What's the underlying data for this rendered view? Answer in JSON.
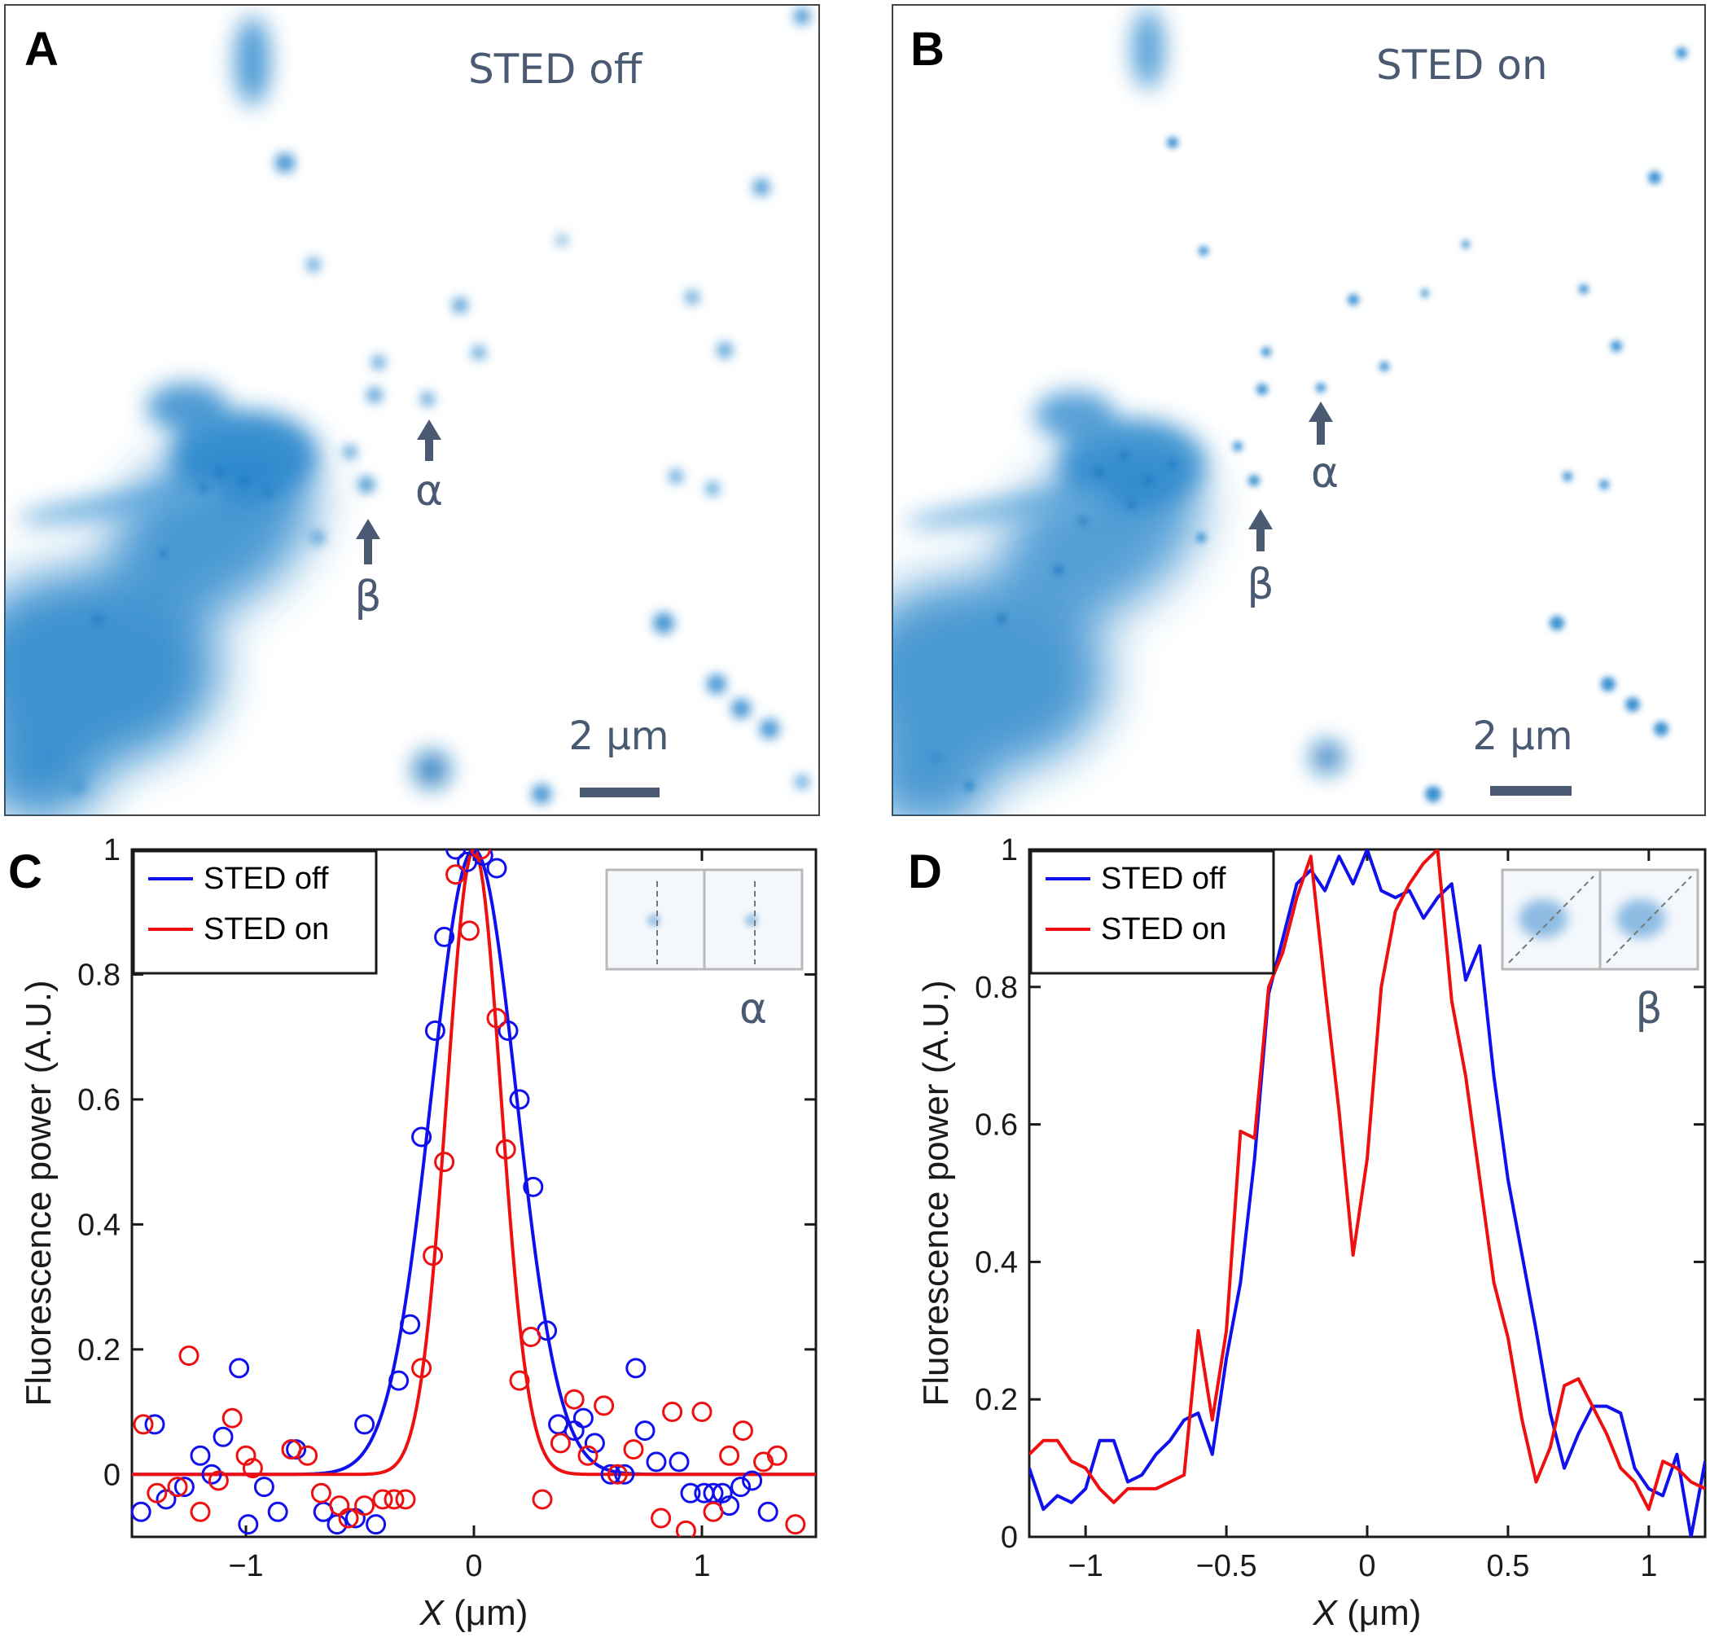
{
  "panels": {
    "A": {
      "letter": "A",
      "title": "STED off",
      "arrow_alpha": "α",
      "arrow_beta": "β",
      "scalebar": "2 μm"
    },
    "B": {
      "letter": "B",
      "title": "STED on",
      "arrow_alpha": "α",
      "arrow_beta": "β",
      "scalebar": "2 μm"
    },
    "C": {
      "letter": "C",
      "inset_label": "α"
    },
    "D": {
      "letter": "D",
      "inset_label": "β"
    }
  },
  "colors": {
    "sted_off": "#1010ee",
    "sted_on": "#ee1010",
    "image_blue": "#1f7fc8",
    "annotation": "#4a5a72"
  },
  "chart_data": [
    {
      "type": "scatter",
      "panel": "C",
      "xlabel_var": "X",
      "xlabel_unit": " (μm)",
      "ylabel": "Fluorescence power (A.U.)",
      "xlim": [
        -1.5,
        1.5
      ],
      "ylim": [
        -0.1,
        1.0
      ],
      "xticks": [
        -1,
        0,
        1
      ],
      "xtick_labels": [
        "−1",
        "0",
        "1"
      ],
      "yticks": [
        0,
        0.2,
        0.4,
        0.6,
        0.8,
        1
      ],
      "ytick_labels": [
        "0",
        "0.2",
        "0.4",
        "0.6",
        "0.8",
        "1"
      ],
      "legend": {
        "position": "top-left",
        "entries": [
          "STED off",
          "STED on"
        ]
      },
      "series": [
        {
          "name": "STED off",
          "color": "#1010ee",
          "points": [
            [
              -1.46,
              -0.06
            ],
            [
              -1.4,
              0.08
            ],
            [
              -1.35,
              -0.04
            ],
            [
              -1.27,
              -0.02
            ],
            [
              -1.2,
              0.03
            ],
            [
              -1.15,
              0.0
            ],
            [
              -1.1,
              0.06
            ],
            [
              -1.03,
              0.17
            ],
            [
              -0.99,
              -0.08
            ],
            [
              -0.92,
              -0.02
            ],
            [
              -0.86,
              -0.06
            ],
            [
              -0.8,
              0.04
            ],
            [
              -0.78,
              0.04
            ],
            [
              -0.66,
              -0.06
            ],
            [
              -0.6,
              -0.08
            ],
            [
              -0.52,
              -0.07
            ],
            [
              -0.48,
              0.08
            ],
            [
              -0.43,
              -0.08
            ],
            [
              -0.33,
              0.15
            ],
            [
              -0.28,
              0.24
            ],
            [
              -0.23,
              0.54
            ],
            [
              -0.17,
              0.71
            ],
            [
              -0.13,
              0.86
            ],
            [
              -0.08,
              1.0
            ],
            [
              -0.03,
              0.98
            ],
            [
              0.04,
              0.99
            ],
            [
              0.1,
              0.97
            ],
            [
              0.15,
              0.71
            ],
            [
              0.2,
              0.6
            ],
            [
              0.26,
              0.46
            ],
            [
              0.32,
              0.23
            ],
            [
              0.37,
              0.08
            ],
            [
              0.44,
              0.07
            ],
            [
              0.48,
              0.09
            ],
            [
              0.53,
              0.05
            ],
            [
              0.6,
              0.0
            ],
            [
              0.66,
              0.0
            ],
            [
              0.71,
              0.17
            ],
            [
              0.75,
              0.07
            ],
            [
              0.8,
              0.02
            ],
            [
              0.9,
              0.02
            ],
            [
              0.95,
              -0.03
            ],
            [
              1.01,
              -0.03
            ],
            [
              1.05,
              -0.03
            ],
            [
              1.09,
              -0.03
            ],
            [
              1.12,
              -0.05
            ],
            [
              1.17,
              -0.02
            ],
            [
              1.22,
              -0.01
            ],
            [
              1.29,
              -0.06
            ]
          ]
        },
        {
          "name": "STED on",
          "color": "#ee1010",
          "points": [
            [
              -1.45,
              0.08
            ],
            [
              -1.39,
              -0.03
            ],
            [
              -1.3,
              -0.02
            ],
            [
              -1.25,
              0.19
            ],
            [
              -1.2,
              -0.06
            ],
            [
              -1.12,
              -0.01
            ],
            [
              -1.06,
              0.09
            ],
            [
              -1.0,
              0.03
            ],
            [
              -0.97,
              0.01
            ],
            [
              -0.8,
              0.04
            ],
            [
              -0.73,
              0.03
            ],
            [
              -0.67,
              -0.03
            ],
            [
              -0.59,
              -0.05
            ],
            [
              -0.55,
              -0.07
            ],
            [
              -0.48,
              -0.05
            ],
            [
              -0.4,
              -0.04
            ],
            [
              -0.35,
              -0.04
            ],
            [
              -0.3,
              -0.04
            ],
            [
              -0.23,
              0.17
            ],
            [
              -0.18,
              0.35
            ],
            [
              -0.13,
              0.5
            ],
            [
              -0.08,
              0.96
            ],
            [
              -0.02,
              0.87
            ],
            [
              0.03,
              1.0
            ],
            [
              0.1,
              0.73
            ],
            [
              0.14,
              0.52
            ],
            [
              0.2,
              0.15
            ],
            [
              0.25,
              0.22
            ],
            [
              0.3,
              -0.04
            ],
            [
              0.38,
              0.05
            ],
            [
              0.44,
              0.12
            ],
            [
              0.5,
              0.03
            ],
            [
              0.57,
              0.11
            ],
            [
              0.63,
              0.0
            ],
            [
              0.7,
              0.04
            ],
            [
              0.82,
              -0.07
            ],
            [
              0.87,
              0.1
            ],
            [
              0.93,
              -0.09
            ],
            [
              1.0,
              0.1
            ],
            [
              1.05,
              -0.06
            ],
            [
              1.12,
              0.03
            ],
            [
              1.18,
              0.07
            ],
            [
              1.27,
              0.02
            ],
            [
              1.33,
              0.03
            ],
            [
              1.41,
              -0.08
            ]
          ]
        }
      ],
      "fits": [
        {
          "name": "STED off",
          "color": "#1010ee",
          "amplitude": 1.0,
          "center": 0.0,
          "fwhm": 0.44
        },
        {
          "name": "STED on",
          "color": "#ee1010",
          "amplitude": 1.0,
          "center": 0.0,
          "fwhm": 0.28
        }
      ]
    },
    {
      "type": "line",
      "panel": "D",
      "xlabel_var": "X",
      "xlabel_unit": " (μm)",
      "ylabel": "Fluorescence power (A.U.)",
      "xlim": [
        -1.2,
        1.2
      ],
      "ylim": [
        0,
        1.0
      ],
      "xticks": [
        -1,
        -0.5,
        0,
        0.5,
        1
      ],
      "xtick_labels": [
        "−1",
        "−0.5",
        "0",
        "0.5",
        "1"
      ],
      "yticks": [
        0,
        0.2,
        0.4,
        0.6,
        0.8,
        1
      ],
      "ytick_labels": [
        "0",
        "0.2",
        "0.4",
        "0.6",
        "0.8",
        "1"
      ],
      "legend": {
        "position": "top-left",
        "entries": [
          "STED off",
          "STED on"
        ]
      },
      "series": [
        {
          "name": "STED off",
          "color": "#1010ee",
          "points": [
            [
              -1.2,
              0.1
            ],
            [
              -1.15,
              0.04
            ],
            [
              -1.1,
              0.06
            ],
            [
              -1.05,
              0.05
            ],
            [
              -1.0,
              0.07
            ],
            [
              -0.95,
              0.14
            ],
            [
              -0.9,
              0.14
            ],
            [
              -0.85,
              0.08
            ],
            [
              -0.8,
              0.09
            ],
            [
              -0.75,
              0.12
            ],
            [
              -0.7,
              0.14
            ],
            [
              -0.65,
              0.17
            ],
            [
              -0.6,
              0.18
            ],
            [
              -0.55,
              0.12
            ],
            [
              -0.5,
              0.26
            ],
            [
              -0.45,
              0.37
            ],
            [
              -0.4,
              0.55
            ],
            [
              -0.35,
              0.79
            ],
            [
              -0.3,
              0.87
            ],
            [
              -0.25,
              0.95
            ],
            [
              -0.2,
              0.97
            ],
            [
              -0.15,
              0.94
            ],
            [
              -0.1,
              0.99
            ],
            [
              -0.05,
              0.95
            ],
            [
              0.0,
              1.0
            ],
            [
              0.05,
              0.94
            ],
            [
              0.1,
              0.93
            ],
            [
              0.15,
              0.94
            ],
            [
              0.2,
              0.9
            ],
            [
              0.25,
              0.93
            ],
            [
              0.3,
              0.95
            ],
            [
              0.35,
              0.81
            ],
            [
              0.4,
              0.86
            ],
            [
              0.45,
              0.67
            ],
            [
              0.5,
              0.52
            ],
            [
              0.55,
              0.41
            ],
            [
              0.6,
              0.3
            ],
            [
              0.65,
              0.18
            ],
            [
              0.7,
              0.1
            ],
            [
              0.75,
              0.15
            ],
            [
              0.8,
              0.19
            ],
            [
              0.85,
              0.19
            ],
            [
              0.9,
              0.18
            ],
            [
              0.95,
              0.1
            ],
            [
              1.0,
              0.07
            ],
            [
              1.05,
              0.06
            ],
            [
              1.1,
              0.12
            ],
            [
              1.15,
              0.0
            ],
            [
              1.2,
              0.11
            ]
          ]
        },
        {
          "name": "STED on",
          "color": "#ee1010",
          "points": [
            [
              -1.2,
              0.12
            ],
            [
              -1.15,
              0.14
            ],
            [
              -1.1,
              0.14
            ],
            [
              -1.05,
              0.11
            ],
            [
              -1.0,
              0.1
            ],
            [
              -0.95,
              0.07
            ],
            [
              -0.9,
              0.05
            ],
            [
              -0.85,
              0.07
            ],
            [
              -0.8,
              0.07
            ],
            [
              -0.75,
              0.07
            ],
            [
              -0.7,
              0.08
            ],
            [
              -0.65,
              0.09
            ],
            [
              -0.6,
              0.3
            ],
            [
              -0.55,
              0.17
            ],
            [
              -0.5,
              0.3
            ],
            [
              -0.45,
              0.59
            ],
            [
              -0.4,
              0.58
            ],
            [
              -0.35,
              0.8
            ],
            [
              -0.3,
              0.85
            ],
            [
              -0.25,
              0.93
            ],
            [
              -0.2,
              0.99
            ],
            [
              -0.15,
              0.8
            ],
            [
              -0.1,
              0.62
            ],
            [
              -0.05,
              0.41
            ],
            [
              0.0,
              0.55
            ],
            [
              0.05,
              0.8
            ],
            [
              0.1,
              0.91
            ],
            [
              0.15,
              0.95
            ],
            [
              0.2,
              0.98
            ],
            [
              0.25,
              1.0
            ],
            [
              0.3,
              0.78
            ],
            [
              0.35,
              0.67
            ],
            [
              0.4,
              0.52
            ],
            [
              0.45,
              0.37
            ],
            [
              0.5,
              0.29
            ],
            [
              0.55,
              0.17
            ],
            [
              0.6,
              0.08
            ],
            [
              0.65,
              0.13
            ],
            [
              0.7,
              0.22
            ],
            [
              0.75,
              0.23
            ],
            [
              0.8,
              0.19
            ],
            [
              0.85,
              0.15
            ],
            [
              0.9,
              0.1
            ],
            [
              0.95,
              0.08
            ],
            [
              1.0,
              0.04
            ],
            [
              1.05,
              0.11
            ],
            [
              1.1,
              0.1
            ],
            [
              1.15,
              0.08
            ],
            [
              1.2,
              0.07
            ]
          ]
        }
      ]
    }
  ]
}
